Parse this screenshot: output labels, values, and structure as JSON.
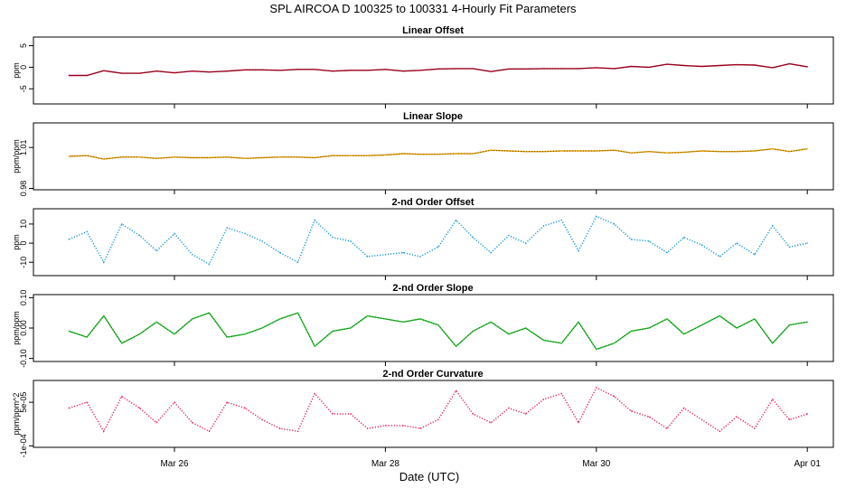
{
  "figure": {
    "title": "SPL   AIRCOA D   100325 to 100331   4-Hourly Fit Parameters",
    "xlabel": "Date (UTC)",
    "x_ticks": [
      {
        "label": "Mar 26",
        "day": 26
      },
      {
        "label": "Mar 28",
        "day": 28
      },
      {
        "label": "Mar 30",
        "day": 30
      },
      {
        "label": "Apr 01",
        "day": 32
      }
    ]
  },
  "chart_data": [
    {
      "type": "line",
      "title": "Linear Offset",
      "ylabel": "ppm",
      "color": "#b00020",
      "style": "solid",
      "ylim": [
        -8.5,
        7
      ],
      "y_ticks": [
        "-5",
        "0",
        "5"
      ],
      "y_tick_values": [
        -5,
        0,
        5
      ],
      "x_unit": "day of March 2010 (UTC)",
      "x": [
        25.0,
        25.17,
        25.33,
        25.5,
        25.67,
        25.83,
        26.0,
        26.17,
        26.33,
        26.5,
        26.67,
        26.83,
        27.0,
        27.17,
        27.33,
        27.5,
        27.67,
        27.83,
        28.0,
        28.17,
        28.33,
        28.5,
        28.67,
        28.83,
        29.0,
        29.17,
        29.33,
        29.5,
        29.67,
        29.83,
        30.0,
        30.17,
        30.33,
        30.5,
        30.67,
        30.83,
        31.0,
        31.17,
        31.33,
        31.5,
        31.67,
        31.83,
        32.0
      ],
      "values": [
        -1.9,
        -1.9,
        -0.8,
        -1.4,
        -1.4,
        -0.9,
        -1.3,
        -0.9,
        -1.1,
        -0.9,
        -0.6,
        -0.6,
        -0.7,
        -0.5,
        -0.5,
        -0.9,
        -0.7,
        -0.7,
        -0.5,
        -0.9,
        -0.7,
        -0.4,
        -0.3,
        -0.3,
        -1.0,
        -0.4,
        -0.4,
        -0.3,
        -0.3,
        -0.3,
        -0.1,
        -0.3,
        0.2,
        0.0,
        0.7,
        0.4,
        0.2,
        0.4,
        0.6,
        0.5,
        -0.1,
        0.8,
        0.1
      ]
    },
    {
      "type": "line",
      "title": "Linear Slope",
      "ylabel": "ppm/ppm",
      "color": "#e6a000",
      "style": "solid",
      "ylim": [
        0.979,
        1.028
      ],
      "y_ticks": [
        "0.98",
        "1.01"
      ],
      "y_tick_values": [
        0.98,
        1.01
      ],
      "x_unit": "day of March 2010 (UTC)",
      "x": [
        25.0,
        25.17,
        25.33,
        25.5,
        25.67,
        25.83,
        26.0,
        26.17,
        26.33,
        26.5,
        26.67,
        26.83,
        27.0,
        27.17,
        27.33,
        27.5,
        27.67,
        27.83,
        28.0,
        28.17,
        28.33,
        28.5,
        28.67,
        28.83,
        29.0,
        29.17,
        29.33,
        29.5,
        29.67,
        29.83,
        30.0,
        30.17,
        30.33,
        30.5,
        30.67,
        30.83,
        31.0,
        31.17,
        31.33,
        31.5,
        31.67,
        31.83,
        32.0
      ],
      "values": [
        1.0035,
        1.004,
        1.0015,
        1.003,
        1.003,
        1.002,
        1.003,
        1.0025,
        1.0025,
        1.003,
        1.002,
        1.0025,
        1.003,
        1.003,
        1.0025,
        1.004,
        1.004,
        1.004,
        1.0045,
        1.0055,
        1.005,
        1.005,
        1.0055,
        1.0055,
        1.008,
        1.0075,
        1.007,
        1.007,
        1.0075,
        1.0075,
        1.0075,
        1.008,
        1.006,
        1.007,
        1.006,
        1.0065,
        1.0075,
        1.007,
        1.007,
        1.0075,
        1.009,
        1.007,
        1.009
      ]
    },
    {
      "type": "line",
      "title": "2-nd Order Offset",
      "ylabel": "ppm",
      "color": "#1a9ad6",
      "style": "dotted",
      "ylim": [
        -17,
        18
      ],
      "y_ticks": [
        "-10",
        "0",
        "10"
      ],
      "y_tick_values": [
        -10,
        0,
        10
      ],
      "x_unit": "day of March 2010 (UTC)",
      "x": [
        25.0,
        25.17,
        25.33,
        25.5,
        25.67,
        25.83,
        26.0,
        26.17,
        26.33,
        26.5,
        26.67,
        26.83,
        27.0,
        27.17,
        27.33,
        27.5,
        27.67,
        27.83,
        28.0,
        28.17,
        28.33,
        28.5,
        28.67,
        28.83,
        29.0,
        29.17,
        29.33,
        29.5,
        29.67,
        29.83,
        30.0,
        30.17,
        30.33,
        30.5,
        30.67,
        30.83,
        31.0,
        31.17,
        31.33,
        31.5,
        31.67,
        31.83,
        32.0
      ],
      "values": [
        2,
        6,
        -10,
        10,
        4,
        -4,
        5,
        -6,
        -11,
        8,
        5,
        1,
        -5,
        -10,
        12,
        3,
        1,
        -7,
        -6,
        -5,
        -7,
        -2,
        12,
        3,
        -5,
        4,
        0,
        9,
        12,
        -4,
        14,
        10,
        2,
        1,
        -5,
        3,
        -1,
        -7,
        0,
        -6,
        9,
        -2,
        0
      ]
    },
    {
      "type": "line",
      "title": "2-nd Order Slope",
      "ylabel": "ppm/ppm",
      "color": "#22c12a",
      "style": "solid",
      "ylim": [
        -0.11,
        0.11
      ],
      "y_ticks": [
        "-0.10",
        "0.00",
        "0.10"
      ],
      "y_tick_values": [
        -0.1,
        0,
        0.1
      ],
      "x_unit": "day of March 2010 (UTC)",
      "x": [
        25.0,
        25.17,
        25.33,
        25.5,
        25.67,
        25.83,
        26.0,
        26.17,
        26.33,
        26.5,
        26.67,
        26.83,
        27.0,
        27.17,
        27.33,
        27.5,
        27.67,
        27.83,
        28.0,
        28.17,
        28.33,
        28.5,
        28.67,
        28.83,
        29.0,
        29.17,
        29.33,
        29.5,
        29.67,
        29.83,
        30.0,
        30.17,
        30.33,
        30.5,
        30.67,
        30.83,
        31.0,
        31.17,
        31.33,
        31.5,
        31.67,
        31.83,
        32.0
      ],
      "values": [
        -0.01,
        -0.03,
        0.04,
        -0.05,
        -0.02,
        0.02,
        -0.02,
        0.03,
        0.05,
        -0.03,
        -0.02,
        0.0,
        0.03,
        0.05,
        -0.06,
        -0.01,
        0.0,
        0.04,
        0.03,
        0.02,
        0.03,
        0.01,
        -0.06,
        -0.01,
        0.02,
        -0.02,
        0.0,
        -0.04,
        -0.05,
        0.02,
        -0.07,
        -0.05,
        -0.01,
        0.0,
        0.03,
        -0.02,
        0.01,
        0.04,
        0.0,
        0.03,
        -0.05,
        0.01,
        0.02
      ]
    },
    {
      "type": "line",
      "title": "2-nd Order Curvature",
      "ylabel": "ppm/ppm^2",
      "color": "#e8245a",
      "style": "dotted",
      "ylim": [
        -0.000105,
        0.000125
      ],
      "y_ticks": [
        "-1e-04",
        "5e-05"
      ],
      "y_tick_values": [
        -0.0001,
        5e-05
      ],
      "x_unit": "day of March 2010 (UTC)",
      "x": [
        25.0,
        25.17,
        25.33,
        25.5,
        25.67,
        25.83,
        26.0,
        26.17,
        26.33,
        26.5,
        26.67,
        26.83,
        27.0,
        27.17,
        27.33,
        27.5,
        27.67,
        27.83,
        28.0,
        28.17,
        28.33,
        28.5,
        28.67,
        28.83,
        29.0,
        29.17,
        29.33,
        29.5,
        29.67,
        29.83,
        30.0,
        30.17,
        30.33,
        30.5,
        30.67,
        30.83,
        31.0,
        31.17,
        31.33,
        31.5,
        31.67,
        31.83,
        32.0
      ],
      "values": [
        3e-05,
        5e-05,
        -5e-05,
        7e-05,
        3e-05,
        -2e-05,
        5e-05,
        -2e-05,
        -5e-05,
        5e-05,
        3e-05,
        -1e-05,
        -4e-05,
        -5e-05,
        8e-05,
        1e-05,
        1e-05,
        -4e-05,
        -3e-05,
        -3e-05,
        -4e-05,
        -1e-05,
        9e-05,
        1e-05,
        -2e-05,
        3e-05,
        1e-05,
        6e-05,
        8e-05,
        -2e-05,
        0.0001,
        7e-05,
        2e-05,
        0.0,
        -4e-05,
        3e-05,
        -1e-05,
        -5e-05,
        0.0,
        -4e-05,
        6e-05,
        -1e-05,
        1e-05
      ]
    }
  ]
}
